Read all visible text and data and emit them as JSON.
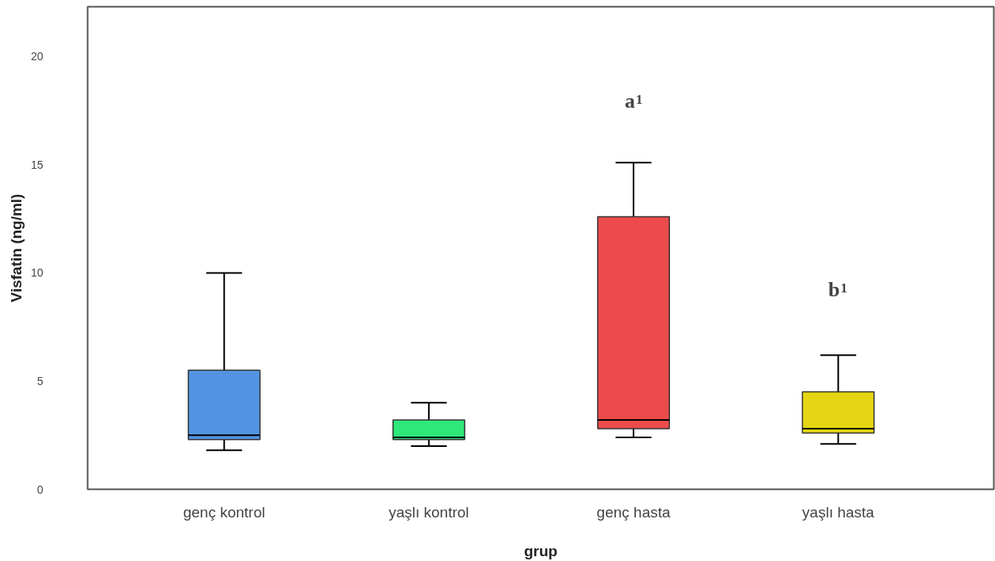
{
  "chart_data": {
    "type": "box",
    "xlabel": "grup",
    "ylabel": "Visfatin (ng/ml)",
    "categories": [
      "genç kontrol",
      "yaşlı kontrol",
      "genç hasta",
      "yaşlı hasta"
    ],
    "boxes": [
      {
        "low": 1.8,
        "q1": 2.3,
        "median": 2.5,
        "q3": 5.5,
        "high": 10.0
      },
      {
        "low": 2.0,
        "q1": 2.3,
        "median": 2.4,
        "q3": 3.2,
        "high": 4.0
      },
      {
        "low": 2.4,
        "q1": 2.8,
        "median": 3.2,
        "q3": 12.6,
        "high": 15.1
      },
      {
        "low": 2.1,
        "q1": 2.6,
        "median": 2.8,
        "q3": 4.5,
        "high": 6.2
      }
    ],
    "colors": [
      "#5294e2",
      "#2ee87a",
      "#eb4b4b",
      "#e5d512"
    ],
    "ylim": [
      0,
      22.3
    ],
    "yticks": [
      0,
      5,
      10,
      15,
      20
    ],
    "grid": false,
    "annotations": [
      "a$^{1}$",
      "b$^{1}$"
    ]
  }
}
